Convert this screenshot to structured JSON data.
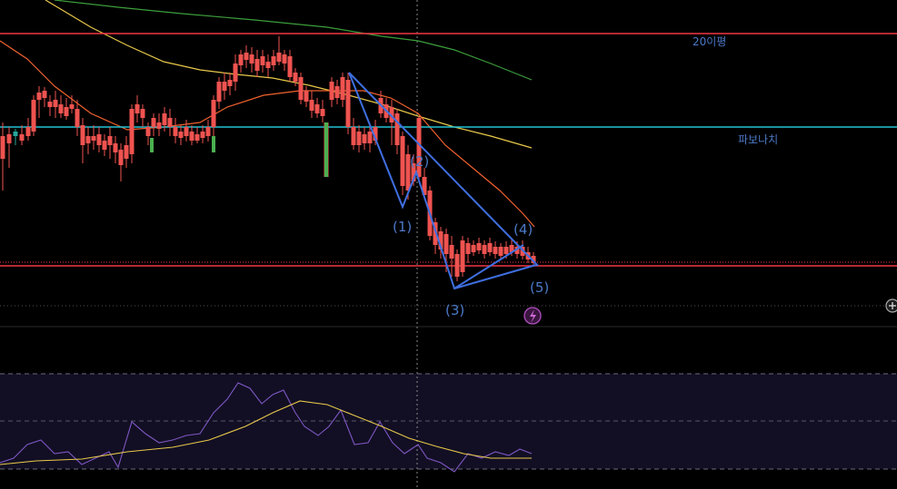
{
  "chart_data": {
    "type": "candlestick",
    "panels": [
      "price",
      "rsi"
    ],
    "horizontal_lines": [
      {
        "label": "20이평",
        "color": "#f23645"
      },
      {
        "label": "파보나치",
        "color": "#22c3d6"
      },
      {
        "label": "",
        "color": "#f23645"
      }
    ],
    "wave_labels": [
      "(1)",
      "(2)",
      "(3)",
      "(4)",
      "(5)"
    ],
    "colors": {
      "up": "#26a69a",
      "down": "#ef5350",
      "signal": "#4caf50",
      "ma_fast": "#f0622e",
      "ma_mid": "#e8c84a",
      "ma_slow": "#3c9e3c",
      "wave": "#3f6fe0",
      "rsi": "#7e57c2",
      "rsi_ma": "#e8c84a",
      "rsi_band": "#120f24",
      "label_blue": "#4c79c8"
    },
    "icons": [
      "lightning-icon",
      "plus-circle-icon"
    ]
  }
}
